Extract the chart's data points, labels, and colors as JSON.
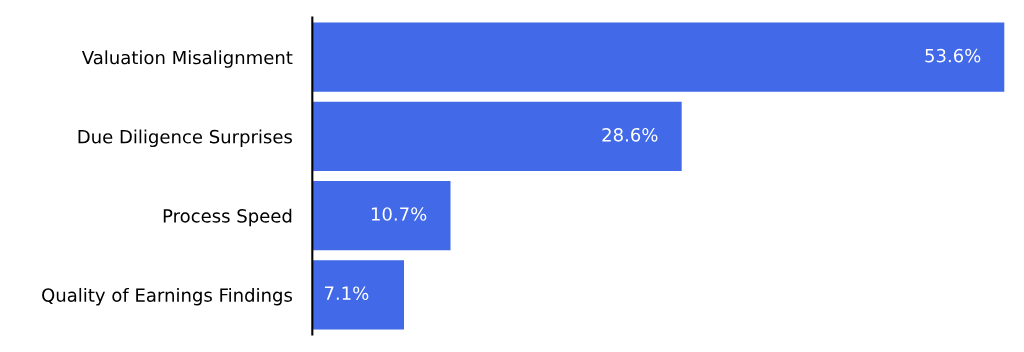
{
  "chart_data": {
    "type": "bar",
    "orientation": "horizontal",
    "categories": [
      "Valuation Misalignment",
      "Due Diligence Surprises",
      "Process Speed",
      "Quality of Earnings Findings"
    ],
    "values": [
      53.6,
      28.6,
      10.7,
      7.1
    ],
    "value_labels": [
      "53.6%",
      "28.6%",
      "10.7%",
      "7.1%"
    ],
    "color": "#4169e8",
    "grid": false,
    "legend": false,
    "tick_labels": "y"
  }
}
